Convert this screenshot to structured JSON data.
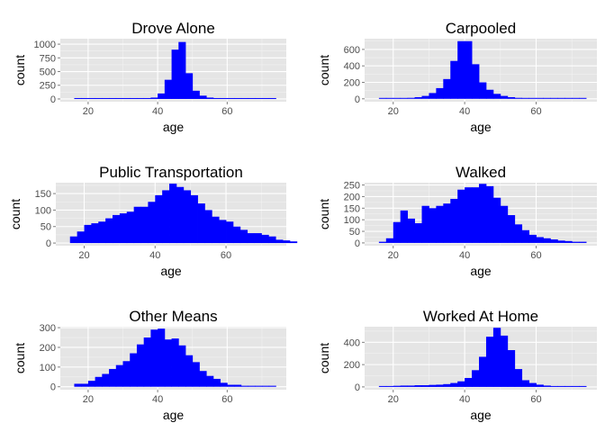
{
  "colors": {
    "bar": "#0000ff",
    "panel": "#e5e5e5",
    "grid": "#ffffff"
  },
  "chart_data": [
    {
      "type": "bar",
      "title": "Drove Alone",
      "xlabel": "age",
      "ylabel": "count",
      "xlim": [
        12,
        77
      ],
      "ylim": [
        -50,
        1100
      ],
      "xticks": [
        20,
        40,
        60
      ],
      "yticks": [
        0,
        250,
        500,
        750,
        1000
      ],
      "bins_start": 16,
      "bin_width": 2,
      "values": [
        2,
        2,
        2,
        2,
        2,
        2,
        3,
        4,
        5,
        8,
        15,
        25,
        100,
        350,
        900,
        1040,
        470,
        150,
        60,
        25,
        12,
        8,
        5,
        4,
        3,
        2,
        2,
        2,
        2
      ],
      "grid": true
    },
    {
      "type": "bar",
      "title": "Carpooled",
      "xlabel": "age",
      "ylabel": "count",
      "xlim": [
        12,
        77
      ],
      "ylim": [
        -35,
        730
      ],
      "xticks": [
        20,
        40,
        60
      ],
      "yticks": [
        0,
        200,
        400,
        600
      ],
      "bins_start": 16,
      "bin_width": 2,
      "values": [
        3,
        3,
        5,
        8,
        12,
        20,
        35,
        70,
        130,
        240,
        460,
        700,
        700,
        420,
        200,
        110,
        60,
        35,
        20,
        12,
        8,
        5,
        4,
        3,
        2,
        2,
        2,
        2,
        2
      ],
      "grid": true
    },
    {
      "type": "bar",
      "title": "Public Transportation",
      "xlabel": "age",
      "ylabel": "count",
      "xlim": [
        12,
        77
      ],
      "ylim": [
        -8,
        183
      ],
      "xticks": [
        20,
        40,
        60
      ],
      "yticks": [
        0,
        50,
        100,
        150
      ],
      "bins_start": 16,
      "bin_width": 2,
      "values": [
        20,
        35,
        55,
        60,
        65,
        75,
        85,
        90,
        95,
        110,
        110,
        125,
        145,
        160,
        180,
        170,
        160,
        145,
        120,
        100,
        80,
        70,
        65,
        50,
        40,
        30,
        30,
        25,
        20,
        10,
        8,
        5
      ],
      "grid": true
    },
    {
      "type": "bar",
      "title": "Walked",
      "xlabel": "age",
      "ylabel": "count",
      "xlim": [
        12,
        77
      ],
      "ylim": [
        -12,
        260
      ],
      "xticks": [
        20,
        40,
        60
      ],
      "yticks": [
        0,
        50,
        100,
        150,
        200,
        250
      ],
      "bins_start": 16,
      "bin_width": 2,
      "values": [
        5,
        20,
        90,
        140,
        105,
        85,
        160,
        150,
        160,
        170,
        190,
        230,
        240,
        240,
        255,
        245,
        195,
        160,
        120,
        80,
        55,
        35,
        25,
        20,
        15,
        10,
        8,
        5,
        5
      ],
      "grid": true
    },
    {
      "type": "bar",
      "title": "Other Means",
      "xlabel": "age",
      "ylabel": "count",
      "xlim": [
        12,
        77
      ],
      "ylim": [
        -15,
        305
      ],
      "xticks": [
        20,
        40,
        60
      ],
      "yticks": [
        0,
        100,
        200,
        300
      ],
      "bins_start": 16,
      "bin_width": 2,
      "values": [
        15,
        15,
        30,
        50,
        65,
        90,
        110,
        130,
        170,
        215,
        250,
        290,
        295,
        240,
        245,
        210,
        160,
        125,
        80,
        55,
        40,
        20,
        10,
        10,
        5,
        5,
        5,
        5,
        5
      ],
      "grid": true
    },
    {
      "type": "bar",
      "title": "Worked At Home",
      "xlabel": "age",
      "ylabel": "count",
      "xlim": [
        12,
        77
      ],
      "ylim": [
        -25,
        540
      ],
      "xticks": [
        20,
        40,
        60
      ],
      "yticks": [
        0,
        200,
        400
      ],
      "bins_start": 16,
      "bin_width": 2,
      "values": [
        5,
        8,
        10,
        12,
        12,
        15,
        15,
        18,
        20,
        25,
        35,
        50,
        80,
        150,
        270,
        450,
        530,
        460,
        330,
        160,
        60,
        35,
        20,
        12,
        8,
        5,
        5,
        3,
        3
      ],
      "grid": true
    }
  ]
}
